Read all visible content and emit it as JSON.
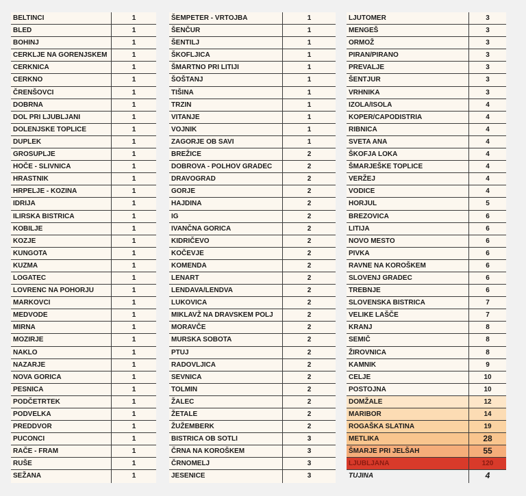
{
  "columns": [
    {
      "rows": [
        {
          "name": "BELTINCI",
          "value": "1"
        },
        {
          "name": "BLED",
          "value": "1"
        },
        {
          "name": "BOHINJ",
          "value": "1"
        },
        {
          "name": "CERKLJE NA GORENJSKEM",
          "value": "1"
        },
        {
          "name": "CERKNICA",
          "value": "1"
        },
        {
          "name": "CERKNO",
          "value": "1"
        },
        {
          "name": "ČRENŠOVCI",
          "value": "1"
        },
        {
          "name": "DOBRNA",
          "value": "1"
        },
        {
          "name": "DOL PRI LJUBLJANI",
          "value": "1"
        },
        {
          "name": "DOLENJSKE TOPLICE",
          "value": "1"
        },
        {
          "name": "DUPLEK",
          "value": "1"
        },
        {
          "name": "GROSUPLJE",
          "value": "1"
        },
        {
          "name": "HOČE - SLIVNICA",
          "value": "1"
        },
        {
          "name": "HRASTNIK",
          "value": "1"
        },
        {
          "name": "HRPELJE - KOZINA",
          "value": "1"
        },
        {
          "name": "IDRIJA",
          "value": "1"
        },
        {
          "name": "ILIRSKA BISTRICA",
          "value": "1"
        },
        {
          "name": "KOBILJE",
          "value": "1"
        },
        {
          "name": "KOZJE",
          "value": "1"
        },
        {
          "name": "KUNGOTA",
          "value": "1"
        },
        {
          "name": "KUZMA",
          "value": "1"
        },
        {
          "name": "LOGATEC",
          "value": "1"
        },
        {
          "name": "LOVRENC NA POHORJU",
          "value": "1"
        },
        {
          "name": "MARKOVCI",
          "value": "1"
        },
        {
          "name": "MEDVODE",
          "value": "1"
        },
        {
          "name": "MIRNA",
          "value": "1"
        },
        {
          "name": "MOZIRJE",
          "value": "1"
        },
        {
          "name": "NAKLO",
          "value": "1"
        },
        {
          "name": "NAZARJE",
          "value": "1"
        },
        {
          "name": "NOVA GORICA",
          "value": "1"
        },
        {
          "name": "PESNICA",
          "value": "1"
        },
        {
          "name": "PODČETRTEK",
          "value": "1"
        },
        {
          "name": "PODVELKA",
          "value": "1"
        },
        {
          "name": "PREDDVOR",
          "value": "1"
        },
        {
          "name": "PUCONCI",
          "value": "1"
        },
        {
          "name": "RAČE - FRAM",
          "value": "1"
        },
        {
          "name": "RUŠE",
          "value": "1"
        },
        {
          "name": "SEŽANA",
          "value": "1"
        }
      ]
    },
    {
      "rows": [
        {
          "name": "ŠEMPETER - VRTOJBA",
          "value": "1"
        },
        {
          "name": "ŠENČUR",
          "value": "1"
        },
        {
          "name": "ŠENTILJ",
          "value": "1"
        },
        {
          "name": "ŠKOFLJICA",
          "value": "1"
        },
        {
          "name": "ŠMARTNO PRI LITIJI",
          "value": "1"
        },
        {
          "name": "ŠOŠTANJ",
          "value": "1"
        },
        {
          "name": "TIŠINA",
          "value": "1"
        },
        {
          "name": "TRZIN",
          "value": "1"
        },
        {
          "name": "VITANJE",
          "value": "1"
        },
        {
          "name": "VOJNIK",
          "value": "1"
        },
        {
          "name": "ZAGORJE OB SAVI",
          "value": "1"
        },
        {
          "name": "BREŽICE",
          "value": "2"
        },
        {
          "name": "DOBROVA - POLHOV GRADEC",
          "value": "2"
        },
        {
          "name": "DRAVOGRAD",
          "value": "2"
        },
        {
          "name": "GORJE",
          "value": "2"
        },
        {
          "name": "HAJDINA",
          "value": "2"
        },
        {
          "name": "IG",
          "value": "2"
        },
        {
          "name": "IVANČNA GORICA",
          "value": "2"
        },
        {
          "name": "KIDRIČEVO",
          "value": "2"
        },
        {
          "name": "KOČEVJE",
          "value": "2"
        },
        {
          "name": "KOMENDA",
          "value": "2"
        },
        {
          "name": "LENART",
          "value": "2"
        },
        {
          "name": "LENDAVA/LENDVA",
          "value": "2"
        },
        {
          "name": "LUKOVICA",
          "value": "2"
        },
        {
          "name": "MIKLAVŽ NA DRAVSKEM POLJ",
          "value": "2"
        },
        {
          "name": "MORAVČE",
          "value": "2"
        },
        {
          "name": "MURSKA SOBOTA",
          "value": "2"
        },
        {
          "name": "PTUJ",
          "value": "2"
        },
        {
          "name": "RADOVLJICA",
          "value": "2"
        },
        {
          "name": "SEVNICA",
          "value": "2"
        },
        {
          "name": "TOLMIN",
          "value": "2"
        },
        {
          "name": "ŽALEC",
          "value": "2"
        },
        {
          "name": "ŽETALE",
          "value": "2"
        },
        {
          "name": "ŽUŽEMBERK",
          "value": "2"
        },
        {
          "name": "BISTRICA OB SOTLI",
          "value": "3"
        },
        {
          "name": "ČRNA NA KOROŠKEM",
          "value": "3"
        },
        {
          "name": "ČRNOMELJ",
          "value": "3"
        },
        {
          "name": "JESENICE",
          "value": "3"
        }
      ]
    },
    {
      "rows": [
        {
          "name": "LJUTOMER",
          "value": "3"
        },
        {
          "name": "MENGEŠ",
          "value": "3"
        },
        {
          "name": "ORMOŽ",
          "value": "3"
        },
        {
          "name": "PIRAN/PIRANO",
          "value": "3"
        },
        {
          "name": "PREVALJE",
          "value": "3"
        },
        {
          "name": "ŠENTJUR",
          "value": "3"
        },
        {
          "name": "VRHNIKA",
          "value": "3"
        },
        {
          "name": "IZOLA/ISOLA",
          "value": "4"
        },
        {
          "name": "KOPER/CAPODISTRIA",
          "value": "4"
        },
        {
          "name": "RIBNICA",
          "value": "4"
        },
        {
          "name": "SVETA ANA",
          "value": "4"
        },
        {
          "name": "ŠKOFJA LOKA",
          "value": "4"
        },
        {
          "name": "ŠMARJEŠKE TOPLICE",
          "value": "4"
        },
        {
          "name": "VERŽEJ",
          "value": "4"
        },
        {
          "name": "VODICE",
          "value": "4"
        },
        {
          "name": "HORJUL",
          "value": "5"
        },
        {
          "name": "BREZOVICA",
          "value": "6"
        },
        {
          "name": "LITIJA",
          "value": "6"
        },
        {
          "name": "NOVO MESTO",
          "value": "6"
        },
        {
          "name": "PIVKA",
          "value": "6"
        },
        {
          "name": "RAVNE NA KOROŠKEM",
          "value": "6"
        },
        {
          "name": "SLOVENJ GRADEC",
          "value": "6"
        },
        {
          "name": "TREBNJE",
          "value": "6"
        },
        {
          "name": "SLOVENSKA BISTRICA",
          "value": "7"
        },
        {
          "name": "VELIKE LAŠČE",
          "value": "7"
        },
        {
          "name": "KRANJ",
          "value": "8"
        },
        {
          "name": "SEMIČ",
          "value": "8"
        },
        {
          "name": "ŽIROVNICA",
          "value": "8"
        },
        {
          "name": "KAMNIK",
          "value": "9"
        },
        {
          "name": "CELJE",
          "value": "10"
        },
        {
          "name": "POSTOJNA",
          "value": "10"
        },
        {
          "name": "DOMŽALE",
          "value": "12",
          "highlight": "#fde6c8"
        },
        {
          "name": "MARIBOR",
          "value": "14",
          "highlight": "#fcdcb4"
        },
        {
          "name": "ROGAŠKA SLATINA",
          "value": "19",
          "highlight": "#fbd3a2"
        },
        {
          "name": "METLIKA",
          "value": "28",
          "highlight": "#f9c58e"
        },
        {
          "name": "ŠMARJE PRI JELŠAH",
          "value": "55",
          "highlight": "#f5ad7a"
        },
        {
          "name": "LJUBLJANA",
          "value": "120",
          "highlight": "#d83a2a"
        },
        {
          "name": "TUJINA",
          "value": "4",
          "italic": true
        }
      ]
    }
  ]
}
